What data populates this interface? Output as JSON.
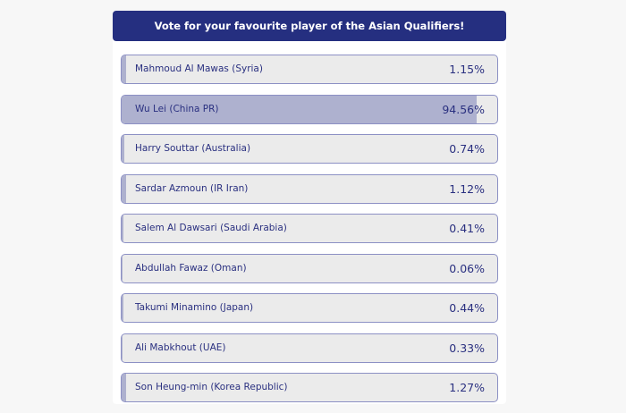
{
  "poll": {
    "title": "Vote for your favourite player of the Asian Qualifiers!",
    "colors": {
      "header": "#252f80",
      "bar_fill": "#aeb1cf",
      "bar_bg": "#ebebeb",
      "text": "#2a3080"
    },
    "options": [
      {
        "name": "Mahmoud Al Mawas (Syria)",
        "percent_label": "1.15%",
        "percent": 1.15
      },
      {
        "name": "Wu Lei (China PR)",
        "percent_label": "94.56%",
        "percent": 94.56
      },
      {
        "name": "Harry Souttar (Australia)",
        "percent_label": "0.74%",
        "percent": 0.74
      },
      {
        "name": "Sardar Azmoun (IR Iran)",
        "percent_label": "1.12%",
        "percent": 1.12
      },
      {
        "name": "Salem Al Dawsari (Saudi Arabia)",
        "percent_label": "0.41%",
        "percent": 0.41
      },
      {
        "name": "Abdullah Fawaz (Oman)",
        "percent_label": "0.06%",
        "percent": 0.06
      },
      {
        "name": "Takumi Minamino (Japan)",
        "percent_label": "0.44%",
        "percent": 0.44
      },
      {
        "name": "Ali Mabkhout (UAE)",
        "percent_label": "0.33%",
        "percent": 0.33
      },
      {
        "name": "Son Heung-min (Korea Republic)",
        "percent_label": "1.27%",
        "percent": 1.27
      }
    ]
  }
}
